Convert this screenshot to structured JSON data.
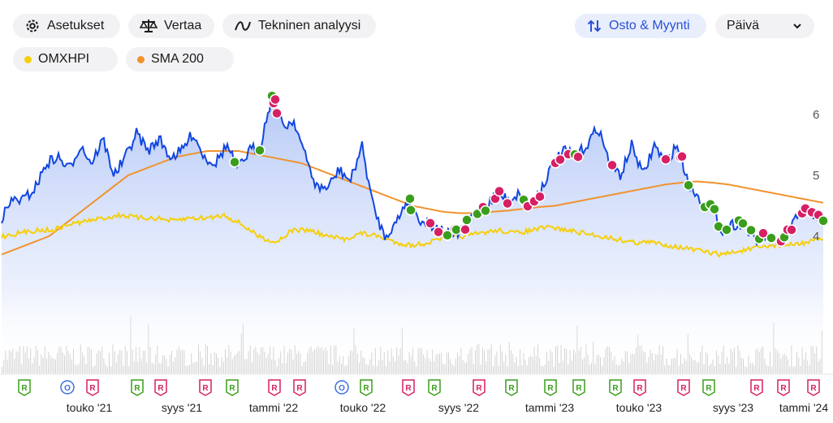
{
  "toolbar": {
    "settings_label": "Asetukset",
    "compare_label": "Vertaa",
    "ta_label": "Tekninen analyysi",
    "buysell_label": "Osto & Myynti",
    "period_value": "Päivä"
  },
  "legend": {
    "items": [
      {
        "label": "OMXHPI",
        "color": "#f5cf0a"
      },
      {
        "label": "SMA 200",
        "color": "#f0922e"
      }
    ]
  },
  "colors": {
    "price_line": "#1246e0",
    "buy": "#3a9e1c",
    "sell": "#d62064",
    "marker_green": "#3a9e1c",
    "marker_pink": "#d62064",
    "marker_blue": "#3a6fe0"
  },
  "chart_data": {
    "type": "line",
    "x_range": [
      "2021-01",
      "2024-02"
    ],
    "ylim": [
      3.5,
      6.5
    ],
    "yticks": [
      4,
      5,
      6
    ],
    "xticks": [
      "touko '21",
      "syys '21",
      "tammi '22",
      "touko '22",
      "syys '22",
      "tammi '23",
      "touko '23",
      "syys '23",
      "tammi '24"
    ],
    "price": [
      4.3,
      4.6,
      4.6,
      4.8,
      5.2,
      5.3,
      5.1,
      5.5,
      5.2,
      5.6,
      5.0,
      5.3,
      5.7,
      5.4,
      5.6,
      5.3,
      5.4,
      5.7,
      5.3,
      5.2,
      5.5,
      5.1,
      5.4,
      5.5,
      6.3,
      5.8,
      5.9,
      5.3,
      4.8,
      4.8,
      5.1,
      4.9,
      5.5,
      4.5,
      4.0,
      4.2,
      4.6,
      4.3,
      4.2,
      4.1,
      4.0,
      4.1,
      4.4,
      4.5,
      4.7,
      4.6,
      4.7,
      4.5,
      4.8,
      5.2,
      5.4,
      5.3,
      5.5,
      5.8,
      5.2,
      5.0,
      5.5,
      5.0,
      5.5,
      5.2,
      5.5,
      4.9,
      4.6,
      4.5,
      4.1,
      4.2,
      4.2,
      3.9,
      4.0,
      3.9,
      4.1,
      4.4,
      4.4,
      4.2
    ],
    "sma200": [
      3.7,
      3.8,
      3.9,
      4.0,
      4.2,
      4.4,
      4.6,
      4.8,
      5.0,
      5.1,
      5.2,
      5.3,
      5.35,
      5.4,
      5.4,
      5.4,
      5.35,
      5.3,
      5.25,
      5.2,
      5.1,
      5.0,
      4.9,
      4.8,
      4.7,
      4.6,
      4.5,
      4.45,
      4.4,
      4.38,
      4.38,
      4.4,
      4.42,
      4.45,
      4.48,
      4.5,
      4.55,
      4.6,
      4.65,
      4.7,
      4.75,
      4.8,
      4.85,
      4.88,
      4.9,
      4.88,
      4.85,
      4.8,
      4.75,
      4.7,
      4.65,
      4.6,
      4.55
    ],
    "omxhpi": [
      4.0,
      4.05,
      4.1,
      4.1,
      4.2,
      4.25,
      4.3,
      4.35,
      4.3,
      4.3,
      4.25,
      4.3,
      4.3,
      4.35,
      4.2,
      4.0,
      3.9,
      4.1,
      4.1,
      4.0,
      3.95,
      4.05,
      4.0,
      3.9,
      3.85,
      3.9,
      4.0,
      4.0,
      4.05,
      4.1,
      4.05,
      4.1,
      4.15,
      4.1,
      4.05,
      4.0,
      3.95,
      3.9,
      3.9,
      3.85,
      3.8,
      3.75,
      3.7,
      3.75,
      3.8,
      3.85,
      3.85,
      3.9,
      3.95
    ]
  },
  "events": {
    "markers": [
      {
        "label": "R",
        "type": "green"
      },
      {
        "label": "O",
        "type": "blue"
      },
      {
        "label": "R",
        "type": "pink"
      },
      {
        "label": "R",
        "type": "green"
      },
      {
        "label": "R",
        "type": "pink"
      },
      {
        "label": "R",
        "type": "pink"
      },
      {
        "label": "R",
        "type": "green"
      },
      {
        "label": "R",
        "type": "pink"
      },
      {
        "label": "R",
        "type": "pink"
      },
      {
        "label": "O",
        "type": "blue"
      },
      {
        "label": "R",
        "type": "green"
      },
      {
        "label": "R",
        "type": "pink"
      },
      {
        "label": "R",
        "type": "green"
      },
      {
        "label": "R",
        "type": "pink"
      },
      {
        "label": "R",
        "type": "green"
      },
      {
        "label": "R",
        "type": "green"
      },
      {
        "label": "R",
        "type": "green"
      },
      {
        "label": "R",
        "type": "green"
      },
      {
        "label": "R",
        "type": "pink"
      },
      {
        "label": "R",
        "type": "pink"
      },
      {
        "label": "R",
        "type": "green"
      },
      {
        "label": "R",
        "type": "pink"
      },
      {
        "label": "R",
        "type": "pink"
      },
      {
        "label": "R",
        "type": "pink"
      }
    ]
  }
}
